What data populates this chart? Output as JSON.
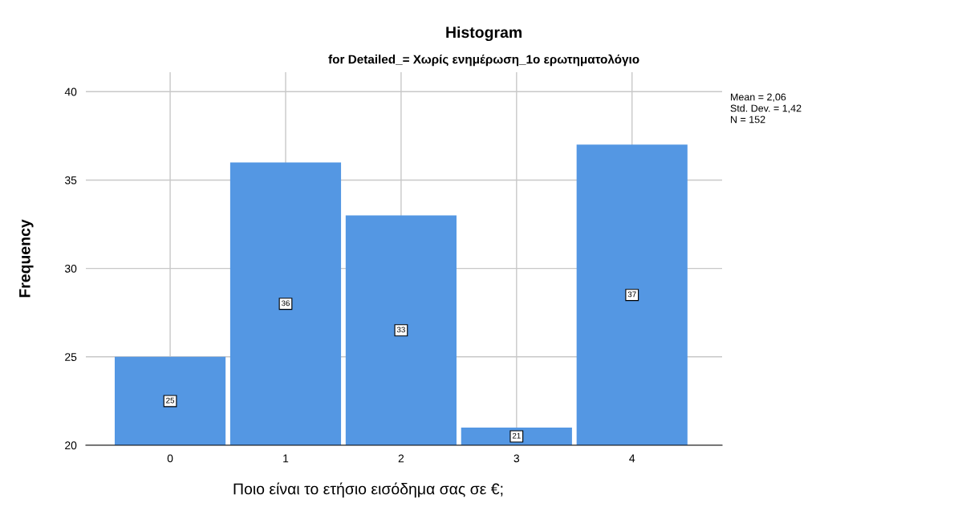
{
  "chart_data": {
    "type": "histogram",
    "title": "Histogram",
    "subtitle": "for Detailed_= Χωρίς ενημέρωση_1ο ερωτηματολόγιο",
    "xlabel": "Ποιο είναι το ετήσιο εισόδημα σας σε €;",
    "ylabel": "Frequency",
    "bins": [
      -0.5,
      0.5,
      1.5,
      2.5,
      3.5,
      4.5
    ],
    "values": [
      25,
      36,
      33,
      21,
      37
    ],
    "color": "#5497e3",
    "xlim": [
      -0.73,
      4.78
    ],
    "xticks": [
      0,
      1,
      2,
      3,
      4
    ],
    "ylim": [
      20,
      41.1
    ],
    "yticks": [
      20,
      25,
      30,
      35,
      40
    ],
    "grid": true,
    "data_labels": true,
    "annotations": [
      "Mean = 2,06",
      "Std. Dev. = 1,42",
      "N = 152"
    ]
  }
}
